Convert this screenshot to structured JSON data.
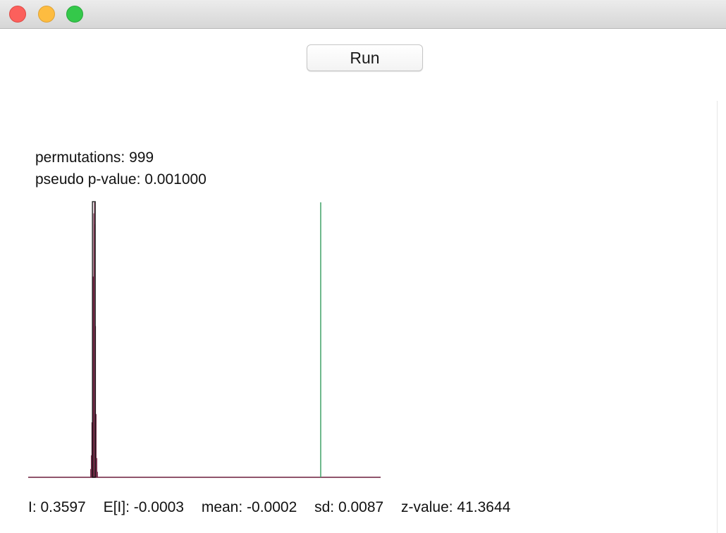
{
  "window": {
    "buttons": [
      "close",
      "minimize",
      "zoom"
    ]
  },
  "toolbar": {
    "run_label": "Run"
  },
  "stats": {
    "permutations": "permutations: 999",
    "pseudo_p": "pseudo p-value: 0.001000"
  },
  "summary": {
    "i_value": "I: 0.3597",
    "expected_i": "E[I]: -0.0003",
    "mean": "mean: -0.0002",
    "sd": "sd: 0.0087",
    "z_value": "z-value: 41.3644"
  },
  "colors": {
    "histogram_bar": "#6b1b3b",
    "expected_line": "#111111",
    "observed_line": "#3fa267",
    "baseline": "#6b1b3b"
  },
  "chart_data": {
    "type": "bar",
    "title": "",
    "xlabel": "",
    "ylabel": "",
    "xlim": [
      -0.1045,
      0.4548
    ],
    "ylim": [
      0,
      1
    ],
    "observed_I": 0.3597,
    "expected_I": -0.0003,
    "bins": [
      {
        "x": -0.0055,
        "value": 0.03
      },
      {
        "x": -0.0045,
        "value": 0.08
      },
      {
        "x": -0.0035,
        "value": 0.2
      },
      {
        "x": -0.0025,
        "value": 0.45
      },
      {
        "x": -0.0015,
        "value": 0.73
      },
      {
        "x": -0.0005,
        "value": 0.96
      },
      {
        "x": 0.0005,
        "value": 1.0
      },
      {
        "x": 0.0015,
        "value": 0.92
      },
      {
        "x": 0.0025,
        "value": 0.55
      },
      {
        "x": 0.0035,
        "value": 0.23
      },
      {
        "x": 0.0045,
        "value": 0.07
      },
      {
        "x": 0.0055,
        "value": 0.02
      }
    ]
  }
}
